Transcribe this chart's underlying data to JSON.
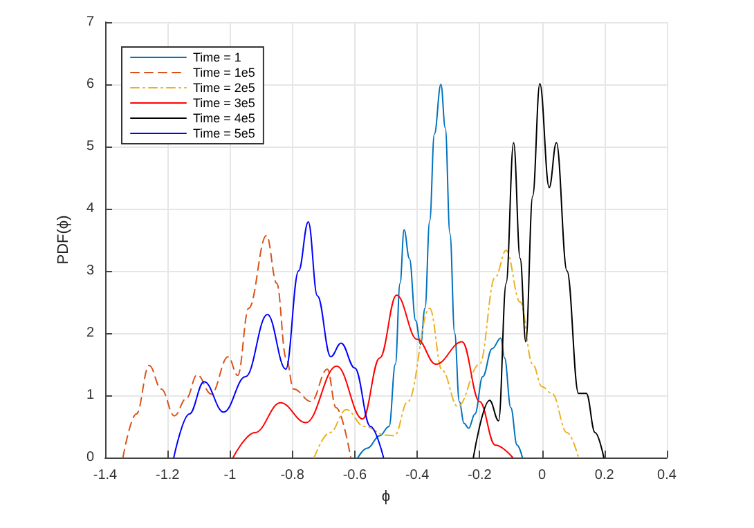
{
  "chart_data": {
    "type": "line",
    "xlabel": "ϕ",
    "ylabel": "PDF(ϕ)",
    "xlim": [
      -1.4,
      0.4
    ],
    "xticks": [
      -1.4,
      -1.2,
      -1,
      -0.8,
      -0.6,
      -0.4,
      -0.2,
      0,
      0.2,
      0.4
    ],
    "ylim": [
      0,
      7
    ],
    "yticks": [
      0,
      1,
      2,
      3,
      4,
      5,
      6,
      7
    ],
    "grid": true,
    "legend": "top left",
    "marker": "none",
    "series": [
      {
        "name": "Time = 1",
        "color": "#0072bd",
        "line_style": "solid",
        "x": [
          -0.59,
          -0.56,
          -0.52,
          -0.49,
          -0.47,
          -0.455,
          -0.442,
          -0.425,
          -0.405,
          -0.389,
          -0.375,
          -0.36,
          -0.345,
          -0.324,
          -0.31,
          -0.295,
          -0.28,
          -0.265,
          -0.25,
          -0.235,
          -0.215,
          -0.19,
          -0.16,
          -0.132,
          -0.12,
          -0.1,
          -0.08,
          -0.063
        ],
        "values": [
          0,
          0.15,
          0.35,
          0.5,
          1.5,
          2.8,
          3.66,
          3.2,
          2.2,
          1.82,
          2.4,
          3.8,
          5.2,
          6.0,
          5.3,
          3.6,
          2.0,
          0.9,
          0.55,
          0.47,
          0.7,
          1.3,
          1.75,
          1.92,
          1.6,
          0.8,
          0.2,
          0
        ]
      },
      {
        "name": "Time = 1e5",
        "color": "#d95319",
        "line_style": "dashed",
        "x": [
          -1.343,
          -1.3,
          -1.259,
          -1.22,
          -1.178,
          -1.14,
          -1.105,
          -1.06,
          -1.006,
          -0.975,
          -0.94,
          -0.883,
          -0.85,
          -0.82,
          -0.796,
          -0.74,
          -0.688,
          -0.66,
          -0.613
        ],
        "values": [
          0,
          0.7,
          1.48,
          1.1,
          0.67,
          0.95,
          1.33,
          1.02,
          1.62,
          1.32,
          2.4,
          3.57,
          2.8,
          1.6,
          1.1,
          0.9,
          1.42,
          0.8,
          0
        ]
      },
      {
        "name": "Time = 2e5",
        "color": "#edb120",
        "line_style": "dashdot",
        "x": [
          -0.73,
          -0.68,
          -0.627,
          -0.57,
          -0.5,
          -0.473,
          -0.43,
          -0.36,
          -0.32,
          -0.27,
          -0.2,
          -0.15,
          -0.115,
          -0.07,
          -0.03,
          0,
          0.032,
          0.08,
          0.117
        ],
        "values": [
          0,
          0.4,
          0.77,
          0.5,
          0.36,
          0.35,
          0.9,
          2.4,
          1.4,
          0.82,
          1.5,
          2.9,
          3.33,
          2.5,
          1.5,
          1.14,
          1.03,
          0.4,
          0
        ]
      },
      {
        "name": "Time = 3e5",
        "color": "#ff0000",
        "line_style": "solid",
        "x": [
          -0.99,
          -0.92,
          -0.838,
          -0.757,
          -0.658,
          -0.575,
          -0.52,
          -0.466,
          -0.4,
          -0.34,
          -0.256,
          -0.2,
          -0.15,
          -0.094
        ],
        "values": [
          0,
          0.4,
          0.88,
          0.56,
          1.47,
          0.62,
          1.6,
          2.61,
          1.9,
          1.5,
          1.86,
          0.9,
          0.2,
          0
        ]
      },
      {
        "name": "Time = 4e5",
        "color": "#000000",
        "line_style": "solid",
        "x": [
          -0.22,
          -0.168,
          -0.139,
          -0.115,
          -0.091,
          -0.07,
          -0.052,
          -0.03,
          -0.007,
          0.023,
          0.046,
          0.08,
          0.117,
          0.142,
          0.17,
          0.198
        ],
        "values": [
          0,
          0.92,
          0.59,
          2.8,
          5.06,
          3.2,
          1.86,
          4.2,
          6.01,
          4.34,
          5.06,
          3.0,
          1.03,
          1.03,
          0.4,
          0
        ]
      },
      {
        "name": "Time = 5e5",
        "color": "#0000ff",
        "line_style": "solid",
        "x": [
          -1.18,
          -1.13,
          -1.083,
          -1.02,
          -0.95,
          -0.88,
          -0.821,
          -0.78,
          -0.749,
          -0.72,
          -0.677,
          -0.644,
          -0.6,
          -0.55,
          -0.508
        ],
        "values": [
          0,
          0.7,
          1.22,
          0.73,
          1.3,
          2.3,
          1.42,
          3.0,
          3.79,
          2.6,
          1.62,
          1.84,
          1.44,
          0.5,
          0
        ]
      }
    ]
  }
}
